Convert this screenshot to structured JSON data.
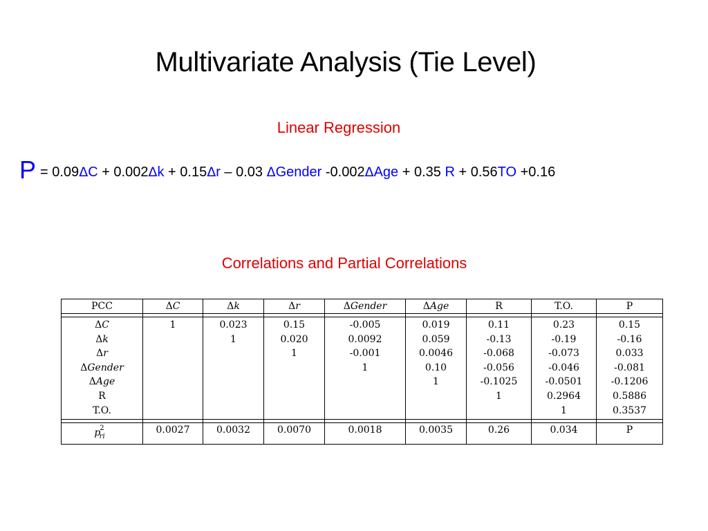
{
  "title": "Multivariate Analysis (Tie Level)",
  "subtitle": "Linear Regression",
  "colors": {
    "black": "#000000",
    "red": "#e00000",
    "blue": "#0000ff"
  },
  "equation": {
    "lhs": "P",
    "t1_prefix": "= 0.09",
    "t1_delta": "Δ",
    "t1_var": "C",
    "t2_prefix": " + 0.002",
    "t2_delta": "Δ",
    "t2_var": "k",
    "t3_prefix": " + 0.15",
    "t3_delta": "Δ",
    "t3_var": "r",
    "t4_prefix": " – 0.03 ",
    "t4_delta": "Δ",
    "t4_var": "Gender",
    "t5_prefix": " -0.002",
    "t5_delta": "Δ",
    "t5_var": "Age",
    "t6_prefix": " + 0.35 ",
    "t6_var": "R",
    "t7_prefix": " + 0.56",
    "t7_var": "TO",
    "t8_suffix": " +0.16"
  },
  "section_heading": "Correlations and Partial Correlations",
  "table": {
    "header": {
      "c0": "PCC",
      "c1_delta": "Δ",
      "c1_var": "C",
      "c2_delta": "Δ",
      "c2_var": "k",
      "c3_delta": "Δ",
      "c3_var": "r",
      "c4_delta": "Δ",
      "c4_var": "Gender",
      "c5_delta": "Δ",
      "c5_var": "Age",
      "c6": "R",
      "c7": "T.O.",
      "c8": "P"
    },
    "row_labels": [
      {
        "delta": "Δ",
        "var": "C"
      },
      {
        "delta": "Δ",
        "var": "k"
      },
      {
        "delta": "Δ",
        "var": "r"
      },
      {
        "delta": "Δ",
        "var": "Gender"
      },
      {
        "delta": "Δ",
        "var": "Age"
      },
      {
        "plain": "R"
      },
      {
        "plain": "T.O."
      }
    ],
    "columns": {
      "dC": [
        "1"
      ],
      "dk": [
        "0.023",
        "1"
      ],
      "dr": [
        "0.15",
        "0.020",
        "1"
      ],
      "dGender": [
        "-0.005",
        "0.0092",
        "-0.001",
        "1"
      ],
      "dAge": [
        "0.019",
        "0.059",
        "0.0046",
        "0.10",
        "1"
      ],
      "R": [
        "0.11",
        "-0.13",
        "-0.068",
        "-0.056",
        "-0.1025",
        "1"
      ],
      "TO": [
        "0.23",
        "-0.19",
        "-0.073",
        "-0.046",
        "-0.0501",
        "0.2964",
        "1"
      ],
      "P": [
        "0.15",
        "-0.16",
        "0.033",
        "-0.081",
        "-0.1206",
        "0.5886",
        "0.3537"
      ]
    },
    "footer": {
      "label_base": "p",
      "label_sup": "2",
      "label_sub": "ri",
      "values": [
        "0.0027",
        "0.0032",
        "0.0070",
        "0.0018",
        "0.0035",
        "0.26",
        "0.034",
        "P"
      ]
    }
  }
}
